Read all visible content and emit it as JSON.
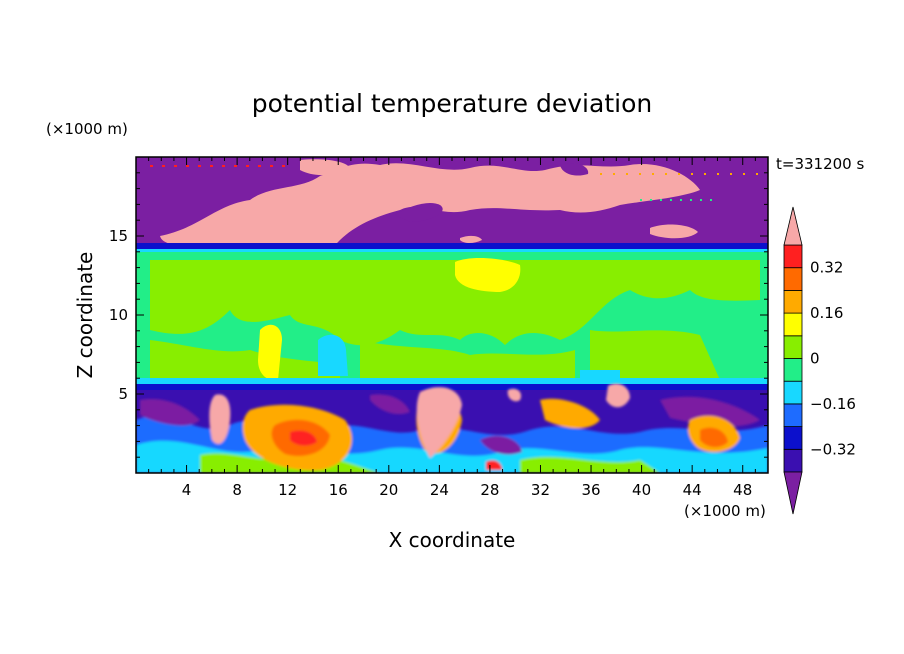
{
  "chart_data": {
    "type": "heatmap",
    "title": "potential temperature deviation",
    "xlabel": "X coordinate",
    "ylabel": "Z coordinate",
    "x_unit": "(×1000 m)",
    "y_unit": "(×1000 m)",
    "time_label": "t=331200 s",
    "xlim": [
      0,
      50
    ],
    "ylim": [
      0,
      20
    ],
    "x_ticks": [
      4,
      8,
      12,
      16,
      20,
      24,
      28,
      32,
      36,
      40,
      44,
      48
    ],
    "y_ticks": [
      5,
      10,
      15
    ],
    "colorbar": {
      "levels": [
        -0.4,
        -0.32,
        -0.24,
        -0.16,
        -0.08,
        0,
        0.08,
        0.16,
        0.24,
        0.32,
        0.4
      ],
      "labeled_ticks": [
        0.32,
        0.16,
        0,
        -0.16,
        -0.32
      ],
      "colors": [
        "#7b1fa2",
        "#3a0fb0",
        "#0c10cc",
        "#1e6cff",
        "#18d8ff",
        "#22ee88",
        "#88ee00",
        "#ffff00",
        "#ffaa00",
        "#ff6a00",
        "#ff2020",
        "#f7a8a8"
      ]
    },
    "regions": [
      {
        "z": [
          14.2,
          20
        ],
        "dominant_level": "below -0.40",
        "note_color": "#7b1fa2"
      },
      {
        "z": [
          14.0,
          14.2
        ],
        "dominant_level": "-0.32 to -0.24"
      },
      {
        "z": [
          13.6,
          14.0
        ],
        "dominant_level": "-0.08 to 0"
      },
      {
        "z": [
          5.9,
          13.6
        ],
        "dominant_level": "0 to 0.08"
      },
      {
        "z": [
          5.3,
          5.9
        ],
        "dominant_level": "-0.08 to 0"
      },
      {
        "z": [
          0,
          5.3
        ],
        "dominant_level": "mixed"
      }
    ]
  }
}
